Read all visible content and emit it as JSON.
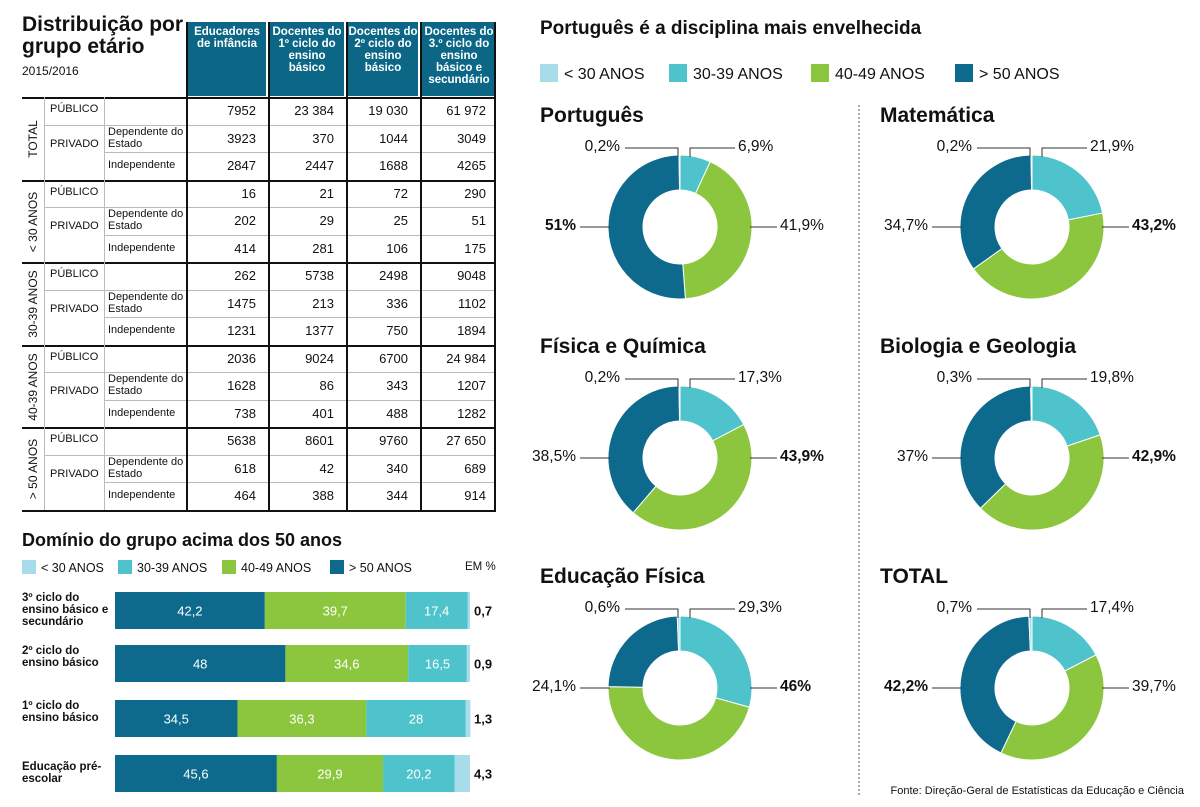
{
  "table": {
    "title": "Distribuição por grupo etário",
    "year": "2015/2016",
    "columns": [
      "Educadores de infância",
      "Docentes do 1º ciclo do ensino básico",
      "Docentes do 2º ciclo do ensino básico",
      "Docentes do 3.º ciclo do ensino básico e secundário"
    ],
    "groups": [
      {
        "label": "TOTAL",
        "rows": [
          {
            "type": "PÚBLICO",
            "sub": "",
            "values": [
              "7952",
              "23 384",
              "19 030",
              "61 972"
            ]
          },
          {
            "type": "PRIVADO",
            "sub": "Dependente do Estado",
            "values": [
              "3923",
              "370",
              "1044",
              "3049"
            ]
          },
          {
            "type": "",
            "sub": "Independente",
            "values": [
              "2847",
              "2447",
              "1688",
              "4265"
            ]
          }
        ]
      },
      {
        "label": "< 30 ANOS",
        "rows": [
          {
            "type": "PÚBLICO",
            "sub": "",
            "values": [
              "16",
              "21",
              "72",
              "290"
            ]
          },
          {
            "type": "PRIVADO",
            "sub": "Dependente do Estado",
            "values": [
              "202",
              "29",
              "25",
              "51"
            ]
          },
          {
            "type": "",
            "sub": "Independente",
            "values": [
              "414",
              "281",
              "106",
              "175"
            ]
          }
        ]
      },
      {
        "label": "30-39 ANOS",
        "rows": [
          {
            "type": "PÚBLICO",
            "sub": "",
            "values": [
              "262",
              "5738",
              "2498",
              "9048"
            ]
          },
          {
            "type": "PRIVADO",
            "sub": "Dependente do Estado",
            "values": [
              "1475",
              "213",
              "336",
              "1102"
            ]
          },
          {
            "type": "",
            "sub": "Independente",
            "values": [
              "1231",
              "1377",
              "750",
              "1894"
            ]
          }
        ]
      },
      {
        "label": "40-39 ANOS",
        "rows": [
          {
            "type": "PÚBLICO",
            "sub": "",
            "values": [
              "2036",
              "9024",
              "6700",
              "24 984"
            ]
          },
          {
            "type": "PRIVADO",
            "sub": "Dependente do Estado",
            "values": [
              "1628",
              "86",
              "343",
              "1207"
            ]
          },
          {
            "type": "",
            "sub": "Independente",
            "values": [
              "738",
              "401",
              "488",
              "1282"
            ]
          }
        ]
      },
      {
        "label": "> 50 ANOS",
        "rows": [
          {
            "type": "PÚBLICO",
            "sub": "",
            "values": [
              "5638",
              "8601",
              "9760",
              "27 650"
            ]
          },
          {
            "type": "PRIVADO",
            "sub": "Dependente do Estado",
            "values": [
              "618",
              "42",
              "340",
              "689"
            ]
          },
          {
            "type": "",
            "sub": "Independente",
            "values": [
              "464",
              "388",
              "344",
              "914"
            ]
          }
        ]
      }
    ]
  },
  "colors": {
    "lt30": "#a8dcea",
    "c30_39": "#4ec3cb",
    "c40_49": "#8cc63f",
    "gt50": "#0d6a8c"
  },
  "legend": [
    "< 30 ANOS",
    "30-39 ANOS",
    "40-49 ANOS",
    "> 50 ANOS"
  ],
  "domain_title": "Domínio do grupo acima dos 50 anos",
  "domain_unit": "EM %",
  "right_title": "Português é a disciplina mais envelhecida",
  "source": "Fonte: Direção-Geral de Estatísticas da Educação e Ciência",
  "chart_data": [
    {
      "type": "bar",
      "title": "Domínio do grupo acima dos 50 anos",
      "stacked": true,
      "orientation": "horizontal",
      "unit": "EM %",
      "categories": [
        "3º ciclo do ensino básico e secundário",
        "2º ciclo do ensino básico",
        "1º ciclo do ensino básico",
        "Educação pré-escolar"
      ],
      "series": [
        {
          "name": "> 50 ANOS",
          "values": [
            42.2,
            48,
            34.5,
            45.6
          ],
          "labels": [
            "42,2",
            "48",
            "34,5",
            "45,6"
          ]
        },
        {
          "name": "40-49 ANOS",
          "values": [
            39.7,
            34.6,
            36.3,
            29.9
          ],
          "labels": [
            "39,7",
            "34,6",
            "36,3",
            "29,9"
          ]
        },
        {
          "name": "30-39 ANOS",
          "values": [
            17.4,
            16.5,
            28,
            20.2
          ],
          "labels": [
            "17,4",
            "16,5",
            "28",
            "20,2"
          ]
        },
        {
          "name": "< 30 ANOS",
          "values": [
            0.7,
            0.9,
            1.3,
            4.3
          ],
          "labels": [
            "0,7",
            "0,9",
            "1,3",
            "4,3"
          ]
        }
      ],
      "legend": "top"
    },
    {
      "type": "pie",
      "donut": true,
      "title": "Português",
      "labels": [
        "< 30 ANOS",
        "30-39 ANOS",
        "40-49 ANOS",
        "> 50 ANOS"
      ],
      "values": [
        0.2,
        6.9,
        41.9,
        51
      ],
      "value_labels": [
        "0,2%",
        "6,9%",
        "41,9%",
        "51%"
      ],
      "bold": [
        false,
        false,
        false,
        true
      ]
    },
    {
      "type": "pie",
      "donut": true,
      "title": "Matemática",
      "labels": [
        "< 30 ANOS",
        "30-39 ANOS",
        "40-49 ANOS",
        "> 50 ANOS"
      ],
      "values": [
        0.2,
        21.9,
        43.2,
        34.7
      ],
      "value_labels": [
        "0,2%",
        "21,9%",
        "43,2%",
        "34,7%"
      ],
      "bold": [
        false,
        false,
        true,
        false
      ]
    },
    {
      "type": "pie",
      "donut": true,
      "title": "Física e Química",
      "labels": [
        "< 30 ANOS",
        "30-39 ANOS",
        "40-49 ANOS",
        "> 50 ANOS"
      ],
      "values": [
        0.2,
        17.3,
        43.9,
        38.5
      ],
      "value_labels": [
        "0,2%",
        "17,3%",
        "43,9%",
        "38,5%"
      ],
      "bold": [
        false,
        false,
        true,
        false
      ]
    },
    {
      "type": "pie",
      "donut": true,
      "title": "Biologia e Geologia",
      "labels": [
        "< 30 ANOS",
        "30-39 ANOS",
        "40-49 ANOS",
        "> 50 ANOS"
      ],
      "values": [
        0.3,
        19.8,
        42.9,
        37
      ],
      "value_labels": [
        "0,3%",
        "19,8%",
        "42,9%",
        "37%"
      ],
      "bold": [
        false,
        false,
        true,
        false
      ]
    },
    {
      "type": "pie",
      "donut": true,
      "title": "Educação Física",
      "labels": [
        "< 30 ANOS",
        "30-39 ANOS",
        "40-49 ANOS",
        "> 50 ANOS"
      ],
      "values": [
        0.6,
        29.3,
        46,
        24.1
      ],
      "value_labels": [
        "0,6%",
        "29,3%",
        "46%",
        "24,1%"
      ],
      "bold": [
        false,
        false,
        true,
        false
      ]
    },
    {
      "type": "pie",
      "donut": true,
      "title": "TOTAL",
      "labels": [
        "< 30 ANOS",
        "30-39 ANOS",
        "40-49 ANOS",
        "> 50 ANOS"
      ],
      "values": [
        0.7,
        17.4,
        39.7,
        42.2
      ],
      "value_labels": [
        "0,7%",
        "17,4%",
        "39,7%",
        "42,2%"
      ],
      "bold": [
        false,
        false,
        false,
        true
      ]
    }
  ]
}
